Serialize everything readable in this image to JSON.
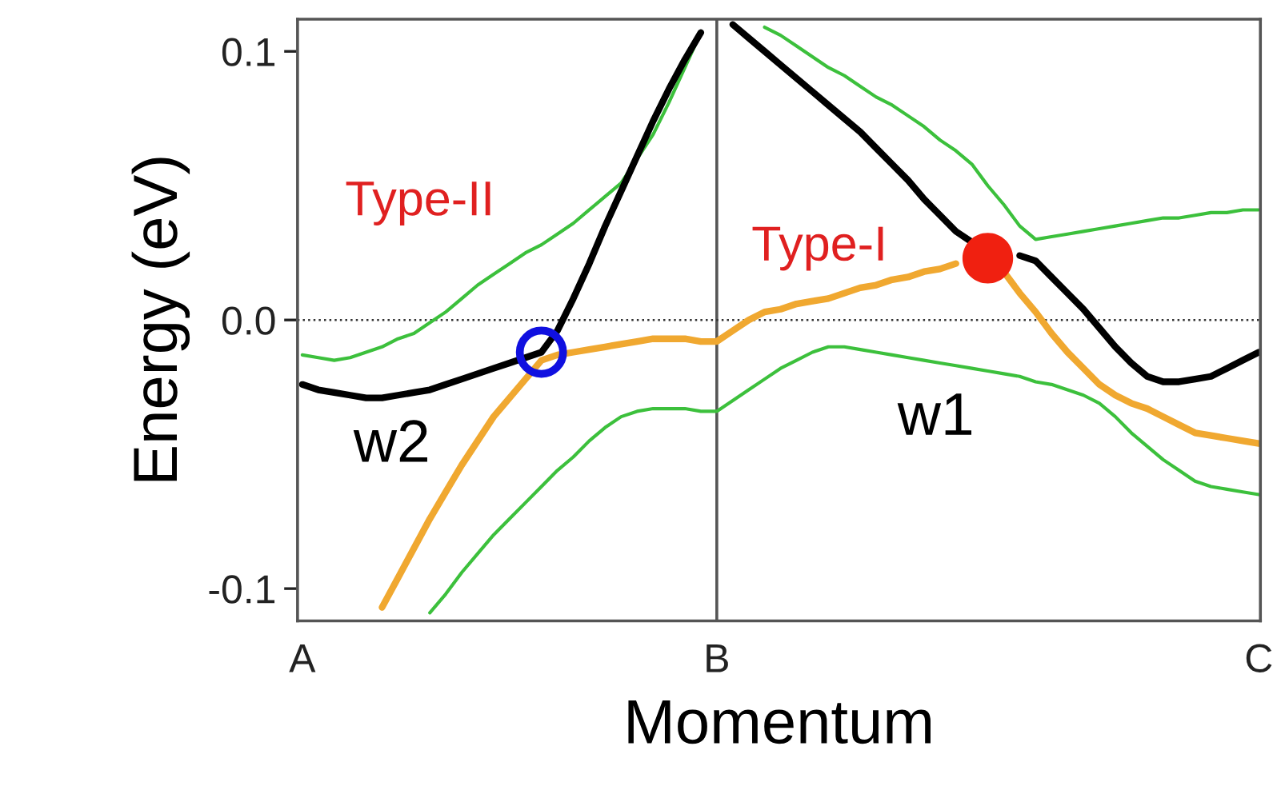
{
  "chart_data": {
    "type": "line",
    "xlabel": "Momentum",
    "ylabel": "Energy (eV)",
    "categories": [
      "A",
      null,
      null,
      null,
      null,
      null,
      null,
      null,
      null,
      null,
      null,
      null,
      null,
      null,
      null,
      null,
      null,
      null,
      null,
      null,
      null,
      null,
      null,
      null,
      null,
      null,
      "B",
      null,
      null,
      null,
      null,
      null,
      null,
      null,
      null,
      null,
      null,
      null,
      null,
      null,
      null,
      null,
      null,
      null,
      null,
      null,
      null,
      null,
      null,
      null,
      null,
      null,
      null,
      null,
      null,
      null,
      null,
      null,
      null,
      null,
      "C"
    ],
    "ylim": [
      -0.112,
      0.112
    ],
    "yticks": [
      {
        "value": -0.1,
        "label": "-0.1"
      },
      {
        "value": 0,
        "label": "0.0"
      },
      {
        "value": 0.1,
        "label": "0.1"
      }
    ],
    "line_style": "solid",
    "ref_lines": [
      {
        "axis": "x",
        "value": "B",
        "color": "#555555",
        "line_style": "solid"
      },
      {
        "axis": "y",
        "value": 0,
        "color": "#333333",
        "line_style": "dotted"
      }
    ],
    "series": [
      {
        "color": "#3cc03c",
        "values": [
          -0.013,
          -0.014,
          -0.015,
          -0.014,
          -0.012,
          -0.01,
          -0.007,
          -0.005,
          -0.001,
          0.003,
          0.008,
          0.013,
          0.017,
          0.021,
          0.025,
          0.028,
          0.032,
          0.036,
          0.041,
          0.046,
          0.051,
          0.06,
          0.069,
          0.081,
          0.094,
          0.107,
          null,
          null,
          null,
          0.109,
          0.106,
          0.102,
          0.098,
          0.094,
          0.091,
          0.087,
          0.083,
          0.08,
          0.076,
          0.072,
          0.067,
          0.063,
          0.058,
          0.05,
          0.043,
          0.035,
          0.03,
          0.031,
          0.032,
          0.033,
          0.034,
          0.035,
          0.036,
          0.037,
          0.038,
          0.038,
          0.039,
          0.04,
          0.04,
          0.041,
          0.041
        ]
      },
      {
        "color": "#3cc03c",
        "values": [
          null,
          null,
          null,
          null,
          null,
          null,
          null,
          null,
          -0.109,
          -0.102,
          -0.094,
          -0.087,
          -0.08,
          -0.074,
          -0.068,
          -0.062,
          -0.056,
          -0.051,
          -0.045,
          -0.04,
          -0.036,
          -0.034,
          -0.033,
          -0.033,
          -0.033,
          -0.034,
          -0.034,
          -0.03,
          -0.026,
          -0.022,
          -0.018,
          -0.015,
          -0.012,
          -0.01,
          -0.01,
          -0.011,
          -0.012,
          -0.013,
          -0.014,
          -0.015,
          -0.016,
          -0.017,
          -0.018,
          -0.019,
          -0.02,
          -0.021,
          -0.023,
          -0.024,
          -0.026,
          -0.028,
          -0.031,
          -0.036,
          -0.042,
          -0.047,
          -0.052,
          -0.056,
          -0.06,
          -0.062,
          -0.063,
          -0.064,
          -0.065
        ]
      },
      {
        "color": "#f0a830",
        "values": [
          null,
          null,
          null,
          null,
          null,
          -0.107,
          -0.096,
          -0.085,
          -0.074,
          -0.064,
          -0.054,
          -0.045,
          -0.036,
          -0.029,
          -0.022,
          -0.015,
          -0.013,
          -0.012,
          -0.011,
          -0.01,
          -0.009,
          -0.008,
          -0.007,
          -0.007,
          -0.007,
          -0.008,
          -0.008,
          -0.004,
          0.0,
          0.003,
          0.004,
          0.006,
          0.007,
          0.008,
          0.01,
          0.012,
          0.013,
          0.015,
          0.016,
          0.018,
          0.019,
          0.021,
          null,
          null,
          0.018,
          0.01,
          0.003,
          -0.005,
          -0.012,
          -0.018,
          -0.024,
          -0.028,
          -0.031,
          -0.033,
          -0.036,
          -0.039,
          -0.042,
          -0.043,
          -0.044,
          -0.045,
          -0.046
        ]
      },
      {
        "color": "#000000",
        "values": [
          -0.024,
          -0.026,
          -0.027,
          -0.028,
          -0.029,
          -0.029,
          -0.028,
          -0.027,
          -0.026,
          -0.024,
          -0.022,
          -0.02,
          -0.018,
          -0.016,
          -0.014,
          -0.012,
          -0.004,
          0.008,
          0.021,
          0.035,
          0.048,
          0.061,
          0.074,
          0.086,
          0.097,
          0.107,
          null,
          0.11,
          0.105,
          0.1,
          0.095,
          0.09,
          0.085,
          0.08,
          0.075,
          0.07,
          0.064,
          0.058,
          0.052,
          0.045,
          0.039,
          0.033,
          0.029,
          null,
          null,
          0.024,
          0.022,
          0.016,
          0.01,
          0.004,
          -0.003,
          -0.01,
          -0.016,
          -0.021,
          -0.023,
          -0.023,
          -0.022,
          -0.021,
          -0.018,
          -0.015,
          -0.012
        ]
      },
      {
        "type": "scatter",
        "marker": "circle",
        "color": "#1010e0",
        "values": [
          null,
          null,
          null,
          null,
          null,
          null,
          null,
          null,
          null,
          null,
          null,
          null,
          null,
          null,
          null,
          -0.012,
          null,
          null,
          null,
          null,
          null,
          null,
          null,
          null,
          null,
          null,
          null,
          null,
          null,
          null,
          null,
          null,
          null,
          null,
          null,
          null,
          null,
          null,
          null,
          null,
          null,
          null,
          null,
          null,
          null,
          null,
          null,
          null,
          null,
          null,
          null,
          null,
          null,
          null,
          null,
          null,
          null,
          null,
          null,
          null,
          null
        ]
      },
      {
        "type": "bubble",
        "color": "#f02010",
        "sizes": [
          null,
          null,
          null,
          null,
          null,
          null,
          null,
          null,
          null,
          null,
          null,
          null,
          null,
          null,
          null,
          null,
          null,
          null,
          null,
          null,
          null,
          null,
          null,
          null,
          null,
          null,
          null,
          null,
          null,
          null,
          null,
          null,
          null,
          null,
          null,
          null,
          null,
          null,
          null,
          null,
          null,
          null,
          null,
          1,
          null,
          null,
          null,
          null,
          null,
          null,
          null,
          null,
          null,
          null,
          null,
          null,
          null,
          null,
          null,
          null,
          null
        ],
        "values": [
          null,
          null,
          null,
          null,
          null,
          null,
          null,
          null,
          null,
          null,
          null,
          null,
          null,
          null,
          null,
          null,
          null,
          null,
          null,
          null,
          null,
          null,
          null,
          null,
          null,
          null,
          null,
          null,
          null,
          null,
          null,
          null,
          null,
          null,
          null,
          null,
          null,
          null,
          null,
          null,
          null,
          null,
          null,
          0.023,
          null,
          null,
          null,
          null,
          null,
          null,
          null,
          null,
          null,
          null,
          null,
          null,
          null,
          null,
          null,
          null,
          null
        ]
      }
    ],
    "annotations": [
      "Type-II",
      "Type-I",
      "w2",
      "w1"
    ]
  }
}
